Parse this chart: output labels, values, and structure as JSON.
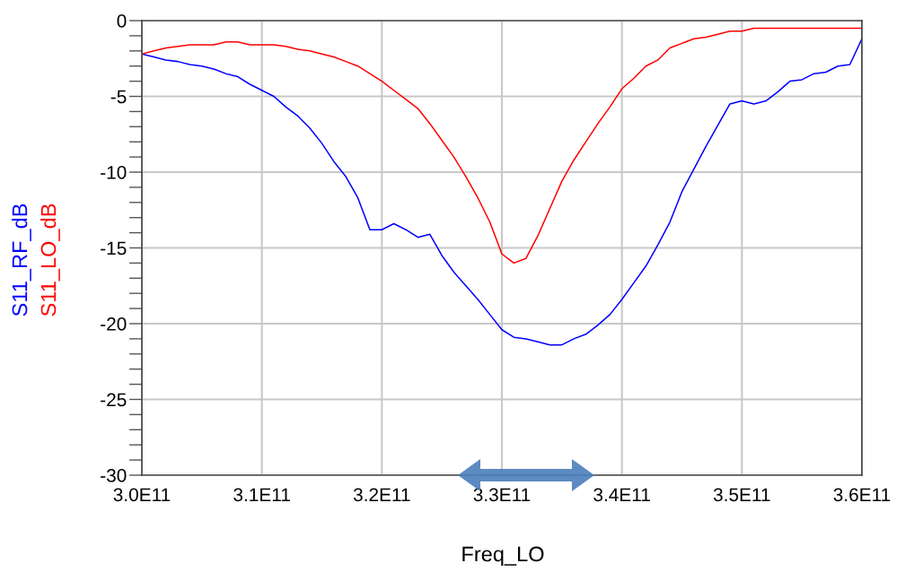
{
  "chart_data": {
    "type": "line",
    "xlabel": "Freq_LO",
    "x": [
      300000000000.0,
      301000000000.0,
      302000000000.0,
      303000000000.0,
      304000000000.0,
      305000000000.0,
      306000000000.0,
      307000000000.0,
      308000000000.0,
      309000000000.0,
      310000000000.0,
      311000000000.0,
      312000000000.0,
      313000000000.0,
      314000000000.0,
      315000000000.0,
      316000000000.0,
      317000000000.0,
      318000000000.0,
      319000000000.0,
      320000000000.0,
      321000000000.0,
      322000000000.0,
      323000000000.0,
      324000000000.0,
      325000000000.0,
      326000000000.0,
      327000000000.0,
      328000000000.0,
      329000000000.0,
      330000000000.0,
      331000000000.0,
      332000000000.0,
      333000000000.0,
      334000000000.0,
      335000000000.0,
      336000000000.0,
      337000000000.0,
      338000000000.0,
      339000000000.0,
      340000000000.0,
      341000000000.0,
      342000000000.0,
      343000000000.0,
      344000000000.0,
      345000000000.0,
      346000000000.0,
      347000000000.0,
      348000000000.0,
      349000000000.0,
      350000000000.0,
      351000000000.0,
      352000000000.0,
      353000000000.0,
      354000000000.0,
      355000000000.0,
      356000000000.0,
      357000000000.0,
      358000000000.0,
      359000000000.0,
      360000000000.0
    ],
    "series": [
      {
        "name": "S11_RF_dB",
        "color": "#0000ff",
        "values": [
          -2.2,
          -2.4,
          -2.6,
          -2.7,
          -2.9,
          -3.0,
          -3.2,
          -3.5,
          -3.7,
          -4.2,
          -4.6,
          -5.0,
          -5.7,
          -6.3,
          -7.1,
          -8.1,
          -9.3,
          -10.3,
          -11.7,
          -13.8,
          -13.8,
          -13.4,
          -13.8,
          -14.3,
          -14.1,
          -15.5,
          -16.6,
          -17.5,
          -18.4,
          -19.4,
          -20.4,
          -20.9,
          -21.0,
          -21.2,
          -21.4,
          -21.4,
          -21.0,
          -20.7,
          -20.1,
          -19.4,
          -18.4,
          -17.3,
          -16.2,
          -14.8,
          -13.3,
          -11.3,
          -9.8,
          -8.3,
          -6.9,
          -5.5,
          -5.3,
          -5.5,
          -5.3,
          -4.7,
          -4.0,
          -3.9,
          -3.5,
          -3.4,
          -3.0,
          -2.9,
          -1.2
        ]
      },
      {
        "name": "S11_LO_dB",
        "color": "#ff0000",
        "values": [
          -2.2,
          -2.0,
          -1.8,
          -1.7,
          -1.6,
          -1.6,
          -1.6,
          -1.4,
          -1.4,
          -1.6,
          -1.6,
          -1.6,
          -1.7,
          -1.9,
          -2.0,
          -2.2,
          -2.4,
          -2.7,
          -3.0,
          -3.5,
          -4.0,
          -4.6,
          -5.2,
          -5.8,
          -6.8,
          -7.9,
          -9.0,
          -10.3,
          -11.7,
          -13.3,
          -15.4,
          -16.0,
          -15.7,
          -14.2,
          -12.4,
          -10.6,
          -9.2,
          -8.0,
          -6.8,
          -5.7,
          -4.5,
          -3.8,
          -3.0,
          -2.6,
          -1.8,
          -1.5,
          -1.2,
          -1.1,
          -0.9,
          -0.7,
          -0.7,
          -0.5,
          -0.5,
          -0.5,
          -0.5,
          -0.5,
          -0.5,
          -0.5,
          -0.5,
          -0.5,
          -0.5
        ]
      }
    ],
    "xlim": [
      300000000000.0,
      360000000000.0
    ],
    "xticks": [
      {
        "value": 300000000000.0,
        "label": "3.0E11"
      },
      {
        "value": 310000000000.0,
        "label": "3.1E11"
      },
      {
        "value": 320000000000.0,
        "label": "3.2E11"
      },
      {
        "value": 330000000000.0,
        "label": "3.3E11"
      },
      {
        "value": 340000000000.0,
        "label": "3.4E11"
      },
      {
        "value": 350000000000.0,
        "label": "3.5E11"
      },
      {
        "value": 360000000000.0,
        "label": "3.6E11"
      }
    ],
    "ylim": [
      -30,
      0
    ],
    "yticks": [
      -30,
      {
        "value": -29,
        "label": null
      },
      {
        "value": -28,
        "label": null
      },
      {
        "value": -27,
        "label": null
      },
      {
        "value": -26,
        "label": null
      },
      -25,
      {
        "value": -24,
        "label": null
      },
      {
        "value": -23,
        "label": null
      },
      {
        "value": -22,
        "label": null
      },
      {
        "value": -21,
        "label": null
      },
      -20,
      {
        "value": -19,
        "label": null
      },
      {
        "value": -18,
        "label": null
      },
      {
        "value": -17,
        "label": null
      },
      {
        "value": -16,
        "label": null
      },
      -15,
      {
        "value": -14,
        "label": null
      },
      {
        "value": -13,
        "label": null
      },
      {
        "value": -12,
        "label": null
      },
      {
        "value": -11,
        "label": null
      },
      -10,
      {
        "value": -9,
        "label": null
      },
      {
        "value": -8,
        "label": null
      },
      {
        "value": -7,
        "label": null
      },
      {
        "value": -6,
        "label": null
      },
      -5,
      {
        "value": -4,
        "label": null
      },
      {
        "value": -3,
        "label": null
      },
      {
        "value": -2,
        "label": null
      },
      {
        "value": -1,
        "label": null
      },
      0
    ],
    "grid": true,
    "line_style": "solid",
    "marker": "none"
  }
}
